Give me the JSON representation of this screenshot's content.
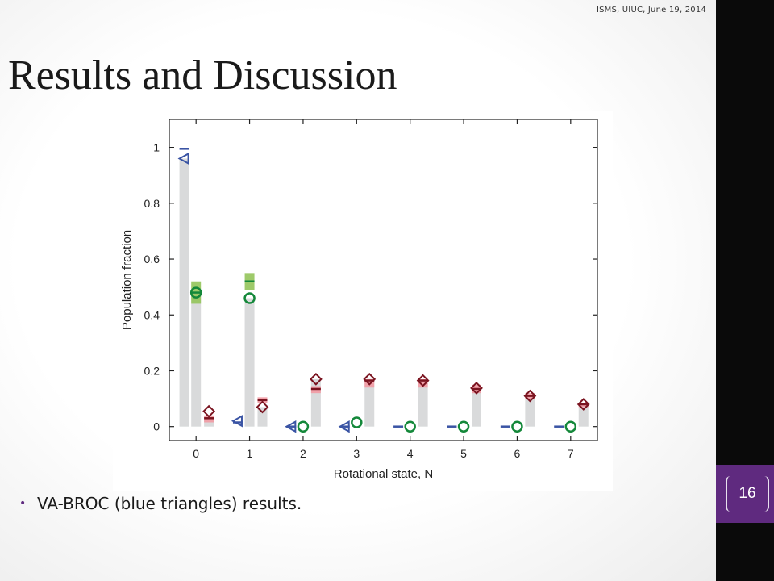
{
  "header_note": "ISMS, UIUC, June 19, 2014",
  "title": "Results and Discussion",
  "page_number": "16",
  "bullet": "VA-BROC (blue triangles) results.",
  "colors": {
    "blue": "#3a54a4",
    "green": "#14883a",
    "dark_red": "#7a1420",
    "light_green": "#94c45a",
    "pink": "#f29aa3",
    "gray_bar": "#d9dadb",
    "purple": "#5f2a7f"
  },
  "chart_data": {
    "type": "bar",
    "xlabel": "Rotational state, N",
    "ylabel": "Population fraction",
    "categories": [
      "0",
      "1",
      "2",
      "3",
      "4",
      "5",
      "6",
      "7"
    ],
    "yticks": [
      "0",
      "0.2",
      "0.4",
      "0.6",
      "0.8",
      "1"
    ],
    "ylim": [
      -0.05,
      1.1
    ],
    "xlim": [
      -0.5,
      7.5
    ],
    "grid": false,
    "legend": "none",
    "groups": [
      {
        "name": "blue",
        "offset": -0.22,
        "bars": [
          0.96,
          0.0,
          0.0,
          0.0,
          0.0,
          0.0,
          0.0,
          0.0
        ],
        "marker": "triangle-left",
        "points": [
          0.96,
          0.02,
          0.0,
          0.0,
          null,
          null,
          null,
          null
        ],
        "dashes": [
          0.995,
          0.015,
          0.0,
          0.0,
          0.0,
          0.0,
          0.0,
          0.0
        ]
      },
      {
        "name": "green",
        "offset": 0.0,
        "bars": [
          0.48,
          0.46,
          0.0,
          0.0,
          0.0,
          0.0,
          0.0,
          0.0
        ],
        "marker": "circle",
        "points": [
          0.48,
          0.46,
          0.0,
          0.015,
          0.0,
          0.0,
          0.0,
          0.0
        ],
        "bands": [
          [
            0.44,
            0.52
          ],
          [
            0.49,
            0.55
          ],
          null,
          null,
          null,
          null,
          null,
          null
        ],
        "dashes": [
          0.48,
          0.52,
          null,
          null,
          null,
          null,
          null,
          null
        ]
      },
      {
        "name": "dark-red",
        "offset": 0.24,
        "bars": [
          0.03,
          0.07,
          0.17,
          0.17,
          0.165,
          0.135,
          0.11,
          0.08
        ],
        "marker": "diamond",
        "points": [
          0.055,
          0.07,
          0.17,
          0.17,
          0.165,
          0.138,
          0.11,
          0.08
        ],
        "bands": [
          [
            0.015,
            0.04
          ],
          [
            0.085,
            0.105
          ],
          [
            0.12,
            0.145
          ],
          [
            0.14,
            0.17
          ],
          [
            0.14,
            0.17
          ],
          [
            0.12,
            0.15
          ],
          [
            0.1,
            0.12
          ],
          [
            0.07,
            0.085
          ]
        ],
        "dashes": [
          0.03,
          0.095,
          0.135,
          0.165,
          0.165,
          0.135,
          0.11,
          0.08
        ]
      }
    ]
  }
}
